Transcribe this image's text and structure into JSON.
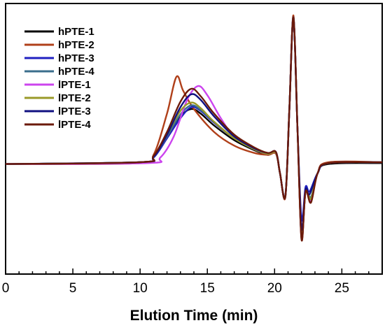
{
  "chart_data": {
    "type": "line",
    "title": "",
    "xlabel": "Elution Time (min)",
    "ylabel": "",
    "xlim": [
      0,
      28
    ],
    "ylim": [
      -1.2,
      1.75
    ],
    "x_ticks": [
      0,
      5,
      10,
      15,
      20,
      25
    ],
    "x_minor_step": 1,
    "y_ticks_shown": false,
    "grid": false,
    "legend_position": "top-left",
    "series": [
      {
        "name": "hPTE-1",
        "color": "#000000",
        "points": [
          [
            0,
            0
          ],
          [
            10,
            0.02
          ],
          [
            11,
            0.08
          ],
          [
            12,
            0.3
          ],
          [
            13,
            0.52
          ],
          [
            13.8,
            0.6
          ],
          [
            14.5,
            0.55
          ],
          [
            15.5,
            0.42
          ],
          [
            17,
            0.26
          ],
          [
            18.5,
            0.15
          ],
          [
            19.5,
            0.1
          ],
          [
            20.1,
            0.12
          ],
          [
            20.4,
            -0.1
          ],
          [
            20.8,
            -0.35
          ],
          [
            21.1,
            0.6
          ],
          [
            21.4,
            1.6
          ],
          [
            21.7,
            0.4
          ],
          [
            22,
            -0.8
          ],
          [
            22.3,
            -0.3
          ],
          [
            22.7,
            -0.38
          ],
          [
            23.2,
            -0.1
          ],
          [
            24,
            0
          ],
          [
            28,
            0.01
          ]
        ]
      },
      {
        "name": "hPTE-2",
        "color": "#b0401a",
        "points": [
          [
            0,
            0
          ],
          [
            10,
            0.01
          ],
          [
            11,
            0.1
          ],
          [
            12,
            0.55
          ],
          [
            12.7,
            0.95
          ],
          [
            13.2,
            0.8
          ],
          [
            14,
            0.6
          ],
          [
            15.5,
            0.35
          ],
          [
            17,
            0.2
          ],
          [
            18.5,
            0.12
          ],
          [
            19.5,
            0.1
          ],
          [
            20.1,
            0.11
          ],
          [
            20.4,
            -0.1
          ],
          [
            20.8,
            -0.36
          ],
          [
            21.1,
            0.6
          ],
          [
            21.4,
            1.62
          ],
          [
            21.7,
            0.4
          ],
          [
            22,
            -0.82
          ],
          [
            22.3,
            -0.3
          ],
          [
            22.7,
            -0.42
          ],
          [
            23.2,
            -0.1
          ],
          [
            24,
            0.02
          ],
          [
            28,
            0.02
          ]
        ]
      },
      {
        "name": "hPTE-3",
        "color": "#2020c0",
        "points": [
          [
            0,
            0
          ],
          [
            10,
            0.02
          ],
          [
            11,
            0.07
          ],
          [
            12,
            0.28
          ],
          [
            13,
            0.5
          ],
          [
            13.8,
            0.62
          ],
          [
            14.5,
            0.58
          ],
          [
            15.5,
            0.45
          ],
          [
            17,
            0.28
          ],
          [
            18.5,
            0.16
          ],
          [
            19.5,
            0.11
          ],
          [
            20.1,
            0.13
          ],
          [
            20.4,
            -0.1
          ],
          [
            20.8,
            -0.34
          ],
          [
            21.1,
            0.6
          ],
          [
            21.4,
            1.6
          ],
          [
            21.7,
            0.4
          ],
          [
            22,
            -0.6
          ],
          [
            22.3,
            -0.25
          ],
          [
            22.6,
            -0.3
          ],
          [
            23.2,
            -0.1
          ],
          [
            24,
            0.01
          ],
          [
            28,
            0.02
          ]
        ]
      },
      {
        "name": "hPTE-4",
        "color": "#3a6e8c",
        "points": [
          [
            0,
            0
          ],
          [
            10,
            0.02
          ],
          [
            11,
            0.08
          ],
          [
            12,
            0.3
          ],
          [
            13,
            0.54
          ],
          [
            13.8,
            0.64
          ],
          [
            14.5,
            0.59
          ],
          [
            15.5,
            0.46
          ],
          [
            17,
            0.28
          ],
          [
            18.5,
            0.16
          ],
          [
            19.5,
            0.11
          ],
          [
            20.1,
            0.12
          ],
          [
            20.4,
            -0.1
          ],
          [
            20.8,
            -0.35
          ],
          [
            21.1,
            0.6
          ],
          [
            21.4,
            1.6
          ],
          [
            21.7,
            0.4
          ],
          [
            22,
            -0.75
          ],
          [
            22.3,
            -0.3
          ],
          [
            22.7,
            -0.36
          ],
          [
            23.2,
            -0.1
          ],
          [
            24,
            0.01
          ],
          [
            28,
            0.02
          ]
        ]
      },
      {
        "name": "lPTE-1",
        "color": "#cc44ee",
        "points": [
          [
            0,
            0
          ],
          [
            10.5,
            0.01
          ],
          [
            11.5,
            0.07
          ],
          [
            12.5,
            0.3
          ],
          [
            13.5,
            0.7
          ],
          [
            14.3,
            0.85
          ],
          [
            15,
            0.75
          ],
          [
            16,
            0.5
          ],
          [
            17,
            0.3
          ],
          [
            18.5,
            0.16
          ],
          [
            19.5,
            0.11
          ],
          [
            20.1,
            0.12
          ],
          [
            20.4,
            -0.1
          ],
          [
            20.8,
            -0.35
          ],
          [
            21.1,
            0.6
          ],
          [
            21.4,
            1.6
          ],
          [
            21.7,
            0.4
          ],
          [
            22,
            -0.8
          ],
          [
            22.3,
            -0.3
          ],
          [
            22.7,
            -0.4
          ],
          [
            23.2,
            -0.1
          ],
          [
            24,
            0.01
          ],
          [
            28,
            0.02
          ]
        ]
      },
      {
        "name": "lPTE-2",
        "color": "#9a9a28",
        "points": [
          [
            0,
            0
          ],
          [
            10,
            0.02
          ],
          [
            11,
            0.08
          ],
          [
            12,
            0.32
          ],
          [
            13,
            0.58
          ],
          [
            13.8,
            0.67
          ],
          [
            14.5,
            0.61
          ],
          [
            15.5,
            0.46
          ],
          [
            17,
            0.28
          ],
          [
            18.5,
            0.16
          ],
          [
            19.5,
            0.11
          ],
          [
            20.1,
            0.12
          ],
          [
            20.4,
            -0.1
          ],
          [
            20.8,
            -0.35
          ],
          [
            21.1,
            0.6
          ],
          [
            21.4,
            1.6
          ],
          [
            21.7,
            0.4
          ],
          [
            22,
            -0.78
          ],
          [
            22.3,
            -0.3
          ],
          [
            22.7,
            -0.38
          ],
          [
            23.2,
            -0.1
          ],
          [
            24,
            0.01
          ],
          [
            28,
            0.02
          ]
        ]
      },
      {
        "name": "lPTE-3",
        "color": "#101080",
        "points": [
          [
            0,
            0
          ],
          [
            10,
            0.02
          ],
          [
            11,
            0.08
          ],
          [
            12,
            0.32
          ],
          [
            13,
            0.62
          ],
          [
            13.8,
            0.76
          ],
          [
            14.5,
            0.7
          ],
          [
            15.5,
            0.52
          ],
          [
            17,
            0.3
          ],
          [
            18.5,
            0.17
          ],
          [
            19.5,
            0.12
          ],
          [
            20.1,
            0.13
          ],
          [
            20.4,
            -0.1
          ],
          [
            20.8,
            -0.35
          ],
          [
            21.1,
            0.6
          ],
          [
            21.4,
            1.6
          ],
          [
            21.7,
            0.4
          ],
          [
            22,
            -0.7
          ],
          [
            22.3,
            -0.28
          ],
          [
            22.6,
            -0.33
          ],
          [
            23.2,
            -0.1
          ],
          [
            24,
            0.01
          ],
          [
            28,
            0.02
          ]
        ]
      },
      {
        "name": "lPTE-4",
        "color": "#6b1a0a",
        "points": [
          [
            0,
            0
          ],
          [
            10,
            0.02
          ],
          [
            11,
            0.09
          ],
          [
            12,
            0.35
          ],
          [
            13,
            0.68
          ],
          [
            13.8,
            0.82
          ],
          [
            14.5,
            0.74
          ],
          [
            15.5,
            0.55
          ],
          [
            17,
            0.32
          ],
          [
            18.5,
            0.18
          ],
          [
            19.5,
            0.12
          ],
          [
            20.1,
            0.13
          ],
          [
            20.4,
            -0.1
          ],
          [
            20.8,
            -0.35
          ],
          [
            21.1,
            0.6
          ],
          [
            21.4,
            1.6
          ],
          [
            21.7,
            0.4
          ],
          [
            22,
            -0.82
          ],
          [
            22.3,
            -0.3
          ],
          [
            22.7,
            -0.42
          ],
          [
            23.2,
            -0.1
          ],
          [
            24,
            0.01
          ],
          [
            28,
            0.02
          ]
        ]
      }
    ]
  }
}
